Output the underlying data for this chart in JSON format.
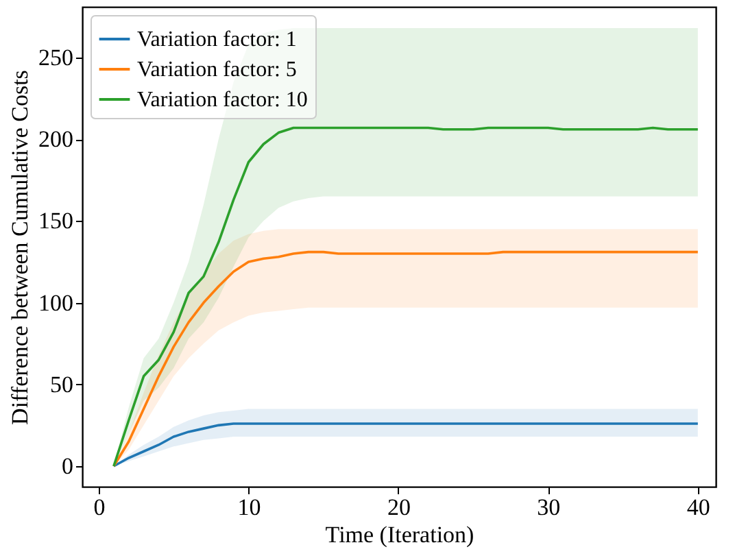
{
  "chart_data": {
    "type": "line",
    "xlabel": "Time (Iteration)",
    "ylabel": "Difference between Cumulative Costs",
    "x": [
      1,
      2,
      3,
      4,
      5,
      6,
      7,
      8,
      9,
      10,
      11,
      12,
      13,
      14,
      15,
      16,
      17,
      18,
      19,
      20,
      21,
      22,
      23,
      24,
      25,
      26,
      27,
      28,
      29,
      30,
      31,
      32,
      33,
      34,
      35,
      36,
      37,
      38,
      39,
      40
    ],
    "series": [
      {
        "name": "Variation factor: 1",
        "color": "#1f77b4",
        "values": [
          0,
          5,
          9,
          13,
          18,
          21,
          23,
          25,
          26,
          26,
          26,
          26,
          26,
          26,
          26,
          26,
          26,
          26,
          26,
          26,
          26,
          26,
          26,
          26,
          26,
          26,
          26,
          26,
          26,
          26,
          26,
          26,
          26,
          26,
          26,
          26,
          26,
          26,
          26,
          26
        ],
        "lower": [
          0,
          3,
          6,
          9,
          12,
          14,
          16,
          17,
          18,
          18,
          18,
          18,
          18,
          18,
          18,
          18,
          18,
          18,
          18,
          18,
          18,
          18,
          18,
          18,
          18,
          18,
          18,
          18,
          18,
          18,
          18,
          18,
          18,
          18,
          18,
          18,
          18,
          18,
          18,
          18
        ],
        "upper": [
          0,
          7,
          13,
          18,
          24,
          28,
          31,
          33,
          34,
          35,
          35,
          35,
          35,
          35,
          35,
          35,
          35,
          35,
          35,
          35,
          35,
          35,
          35,
          35,
          35,
          35,
          35,
          35,
          35,
          35,
          35,
          35,
          35,
          35,
          35,
          35,
          35,
          35,
          35,
          35
        ]
      },
      {
        "name": "Variation factor: 5",
        "color": "#ff7f0e",
        "values": [
          0,
          15,
          35,
          55,
          73,
          88,
          100,
          110,
          119,
          125,
          127,
          128,
          130,
          131,
          131,
          130,
          130,
          130,
          130,
          130,
          130,
          130,
          130,
          130,
          130,
          130,
          131,
          131,
          131,
          131,
          131,
          131,
          131,
          131,
          131,
          131,
          131,
          131,
          131,
          131
        ],
        "lower": [
          0,
          10,
          25,
          40,
          55,
          66,
          75,
          83,
          88,
          92,
          94,
          95,
          96,
          97,
          97,
          97,
          97,
          97,
          97,
          97,
          97,
          97,
          97,
          97,
          97,
          97,
          97,
          97,
          97,
          97,
          97,
          97,
          97,
          97,
          97,
          97,
          97,
          97,
          97,
          97
        ],
        "upper": [
          0,
          20,
          45,
          68,
          88,
          105,
          118,
          130,
          138,
          142,
          144,
          145,
          145,
          145,
          145,
          145,
          145,
          145,
          145,
          145,
          145,
          145,
          145,
          145,
          145,
          145,
          145,
          145,
          145,
          145,
          145,
          145,
          145,
          145,
          145,
          145,
          145,
          145,
          145,
          145
        ]
      },
      {
        "name": "Variation factor: 10",
        "color": "#2ca02c",
        "values": [
          0,
          28,
          55,
          65,
          82,
          106,
          116,
          137,
          163,
          186,
          197,
          204,
          207,
          207,
          207,
          207,
          207,
          207,
          207,
          207,
          207,
          207,
          206,
          206,
          206,
          207,
          207,
          207,
          207,
          207,
          206,
          206,
          206,
          206,
          206,
          206,
          207,
          206,
          206,
          206
        ],
        "lower": [
          0,
          20,
          40,
          48,
          60,
          78,
          88,
          103,
          122,
          140,
          150,
          158,
          162,
          164,
          165,
          165,
          165,
          165,
          165,
          165,
          165,
          165,
          165,
          165,
          165,
          165,
          165,
          165,
          165,
          165,
          165,
          165,
          165,
          165,
          165,
          165,
          165,
          165,
          165,
          165
        ],
        "upper": [
          0,
          36,
          66,
          78,
          100,
          125,
          160,
          200,
          235,
          258,
          265,
          267,
          268,
          268,
          268,
          268,
          268,
          268,
          268,
          268,
          268,
          268,
          268,
          268,
          268,
          268,
          268,
          268,
          268,
          268,
          268,
          268,
          268,
          268,
          268,
          268,
          268,
          268,
          268,
          268
        ]
      }
    ],
    "xlim": [
      -1.1,
      41.2
    ],
    "ylim": [
      -12.6,
      281
    ],
    "xticks": [
      0,
      10,
      20,
      30,
      40
    ],
    "yticks": [
      0,
      50,
      100,
      150,
      200,
      250
    ],
    "legend": "top left",
    "grid": false,
    "marker": "none",
    "line_style": "solid"
  }
}
